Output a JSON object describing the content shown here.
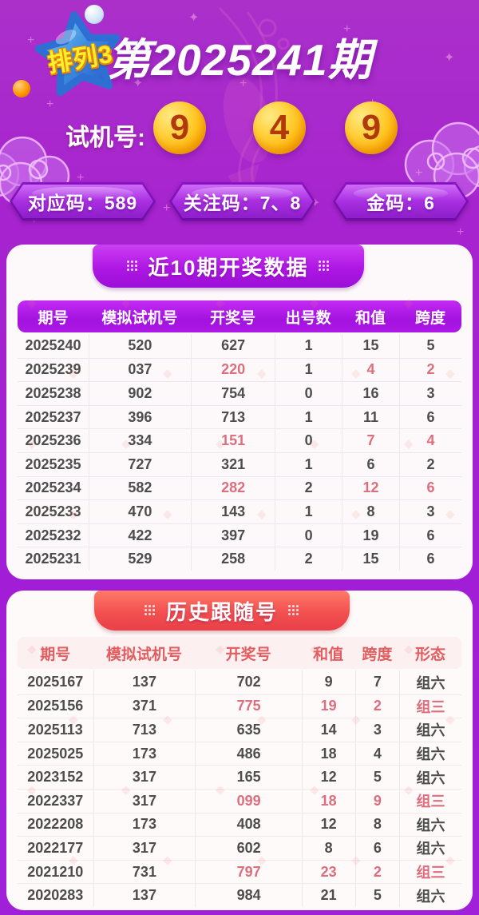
{
  "header": {
    "logo_text": "排列3",
    "issue_title": "第2025241期"
  },
  "test_machine": {
    "label": "试机号:",
    "numbers": [
      "9",
      "4",
      "9"
    ]
  },
  "info_pills": [
    {
      "label": "对应码：589"
    },
    {
      "label": "关注码：7、8"
    },
    {
      "label": "金码：6"
    }
  ],
  "recent_table": {
    "title": "近10期开奖数据",
    "columns": [
      "期号",
      "模拟试机号",
      "开奖号",
      "出号数",
      "和值",
      "跨度"
    ],
    "hot_cols": [
      2,
      4,
      5
    ],
    "rows": [
      {
        "cells": [
          "2025240",
          "520",
          "627",
          "1",
          "15",
          "5"
        ],
        "hot": false
      },
      {
        "cells": [
          "2025239",
          "037",
          "220",
          "1",
          "4",
          "2"
        ],
        "hot": true
      },
      {
        "cells": [
          "2025238",
          "902",
          "754",
          "0",
          "16",
          "3"
        ],
        "hot": false
      },
      {
        "cells": [
          "2025237",
          "396",
          "713",
          "1",
          "11",
          "6"
        ],
        "hot": false
      },
      {
        "cells": [
          "2025236",
          "334",
          "151",
          "0",
          "7",
          "4"
        ],
        "hot": true
      },
      {
        "cells": [
          "2025235",
          "727",
          "321",
          "1",
          "6",
          "2"
        ],
        "hot": false
      },
      {
        "cells": [
          "2025234",
          "582",
          "282",
          "2",
          "12",
          "6"
        ],
        "hot": true
      },
      {
        "cells": [
          "2025233",
          "470",
          "143",
          "1",
          "8",
          "3"
        ],
        "hot": false
      },
      {
        "cells": [
          "2025232",
          "422",
          "397",
          "0",
          "19",
          "6"
        ],
        "hot": false
      },
      {
        "cells": [
          "2025231",
          "529",
          "258",
          "2",
          "15",
          "6"
        ],
        "hot": false
      }
    ]
  },
  "history_table": {
    "title": "历史跟随号",
    "columns": [
      "期号",
      "模拟试机号",
      "开奖号",
      "和值",
      "跨度",
      "形态"
    ],
    "hot_cols": [
      2,
      3,
      4,
      5
    ],
    "rows": [
      {
        "cells": [
          "2025167",
          "137",
          "702",
          "9",
          "7",
          "组六"
        ],
        "hot": false
      },
      {
        "cells": [
          "2025156",
          "371",
          "775",
          "19",
          "2",
          "组三"
        ],
        "hot": true
      },
      {
        "cells": [
          "2025113",
          "713",
          "635",
          "14",
          "3",
          "组六"
        ],
        "hot": false
      },
      {
        "cells": [
          "2025025",
          "173",
          "486",
          "18",
          "4",
          "组六"
        ],
        "hot": false
      },
      {
        "cells": [
          "2023152",
          "317",
          "165",
          "12",
          "5",
          "组六"
        ],
        "hot": false
      },
      {
        "cells": [
          "2022337",
          "317",
          "099",
          "18",
          "9",
          "组三"
        ],
        "hot": true
      },
      {
        "cells": [
          "2022208",
          "173",
          "408",
          "12",
          "8",
          "组六"
        ],
        "hot": false
      },
      {
        "cells": [
          "2022177",
          "317",
          "602",
          "8",
          "6",
          "组六"
        ],
        "hot": false
      },
      {
        "cells": [
          "2021210",
          "731",
          "797",
          "23",
          "2",
          "组三"
        ],
        "hot": true
      },
      {
        "cells": [
          "2020283",
          "137",
          "984",
          "21",
          "5",
          "组六"
        ],
        "hot": false
      }
    ]
  },
  "colors": {
    "background_purple": "#a21ed6",
    "banner_purple": "#ae17e4",
    "banner_red": "#f25050",
    "hot_red": "#dc6e7e",
    "text_dark": "#4d4d4d",
    "ball_gold": "#ffd23e",
    "ball_number_red": "#b23a0a"
  }
}
